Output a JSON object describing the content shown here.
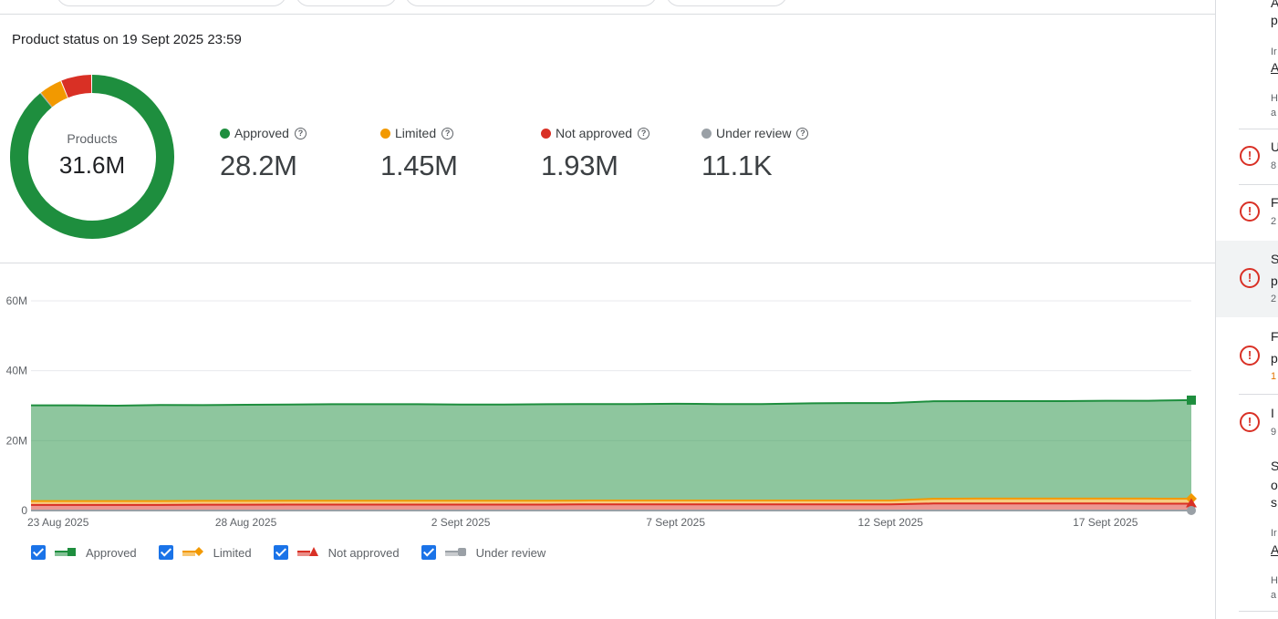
{
  "header": {
    "title": "Product status on 19 Sept 2025 23:59"
  },
  "donut": {
    "label": "Products",
    "total": "31.6M"
  },
  "stats": [
    {
      "label": "Approved",
      "value": "28.2M",
      "color": "#1e8e3e"
    },
    {
      "label": "Limited",
      "value": "1.45M",
      "color": "#f29900"
    },
    {
      "label": "Not approved",
      "value": "1.93M",
      "color": "#d93025"
    },
    {
      "label": "Under review",
      "value": "11.1K",
      "color": "#9aa0a6"
    }
  ],
  "chart_data": {
    "type": "area",
    "stacked": true,
    "x": [
      "23 Aug 2025",
      "24 Aug 2025",
      "25 Aug 2025",
      "26 Aug 2025",
      "27 Aug 2025",
      "28 Aug 2025",
      "29 Aug 2025",
      "30 Aug 2025",
      "31 Aug 2025",
      "1 Sept 2025",
      "2 Sept 2025",
      "3 Sept 2025",
      "4 Sept 2025",
      "5 Sept 2025",
      "6 Sept 2025",
      "7 Sept 2025",
      "8 Sept 2025",
      "9 Sept 2025",
      "10 Sept 2025",
      "11 Sept 2025",
      "12 Sept 2025",
      "13 Sept 2025",
      "14 Sept 2025",
      "15 Sept 2025",
      "16 Sept 2025",
      "17 Sept 2025",
      "18 Sept 2025",
      "19 Sept 2025"
    ],
    "x_tick_labels": [
      "23 Aug 2025",
      "28 Aug 2025",
      "2 Sept 2025",
      "7 Sept 2025",
      "12 Sept 2025",
      "17 Sept 2025"
    ],
    "y_tick_labels": [
      "0",
      "20M",
      "40M",
      "60M"
    ],
    "ylim": [
      0,
      60000000
    ],
    "grid": true,
    "series": [
      {
        "name": "Under review",
        "color": "#9aa0a6",
        "marker": "circle",
        "values": [
          0.01,
          0.01,
          0.01,
          0.01,
          0.01,
          0.01,
          0.01,
          0.01,
          0.01,
          0.01,
          0.01,
          0.01,
          0.01,
          0.01,
          0.01,
          0.01,
          0.01,
          0.01,
          0.01,
          0.01,
          0.01,
          0.01,
          0.01,
          0.01,
          0.01,
          0.01,
          0.01,
          0.011
        ]
      },
      {
        "name": "Not approved",
        "color": "#d93025",
        "marker": "triangle",
        "values": [
          1.6,
          1.6,
          1.6,
          1.6,
          1.65,
          1.65,
          1.7,
          1.7,
          1.7,
          1.7,
          1.7,
          1.7,
          1.7,
          1.75,
          1.75,
          1.75,
          1.75,
          1.75,
          1.75,
          1.75,
          1.75,
          2.0,
          2.0,
          2.0,
          2.0,
          2.0,
          1.95,
          1.93
        ]
      },
      {
        "name": "Limited",
        "color": "#f29900",
        "marker": "diamond",
        "values": [
          1.1,
          1.1,
          1.1,
          1.1,
          1.1,
          1.1,
          1.1,
          1.1,
          1.1,
          1.1,
          1.1,
          1.1,
          1.1,
          1.1,
          1.1,
          1.1,
          1.1,
          1.1,
          1.1,
          1.1,
          1.1,
          1.35,
          1.4,
          1.4,
          1.4,
          1.4,
          1.45,
          1.45
        ]
      },
      {
        "name": "Approved",
        "color": "#1e8e3e",
        "marker": "square",
        "values": [
          27.4,
          27.4,
          27.3,
          27.5,
          27.4,
          27.5,
          27.5,
          27.6,
          27.6,
          27.6,
          27.5,
          27.5,
          27.6,
          27.6,
          27.6,
          27.7,
          27.6,
          27.6,
          27.8,
          27.9,
          27.9,
          27.9,
          27.9,
          27.9,
          27.9,
          28.0,
          28.0,
          28.2
        ]
      }
    ],
    "units": "millions"
  },
  "legend": [
    {
      "label": "Approved",
      "color": "#1e8e3e",
      "marker": "square"
    },
    {
      "label": "Limited",
      "color": "#f29900",
      "marker": "diamond"
    },
    {
      "label": "Not approved",
      "color": "#d93025",
      "marker": "triangle"
    },
    {
      "label": "Under review",
      "color": "#9aa0a6",
      "marker": "circle"
    }
  ],
  "right_panel": {
    "fragments": {
      "a1": "A",
      "p1": "p",
      "ir1": "Ir",
      "alink1": "A",
      "h1": "H",
      "a2": "a",
      "u": "U",
      "n8": "8",
      "f1": "F",
      "n2a": "2",
      "s1": "S",
      "p2": "p",
      "n2b": "2",
      "f2": "F",
      "p3": "p",
      "n1": "1",
      "i1": "I",
      "n9": "9",
      "s2": "S",
      "o1": "o",
      "s3": "s",
      "ir2": "Ir",
      "alink2": "A",
      "h2": "H",
      "a3": "a"
    }
  }
}
